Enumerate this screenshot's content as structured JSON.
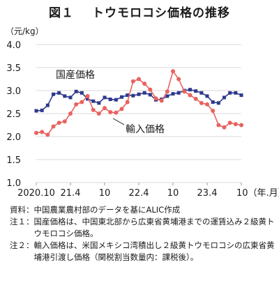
{
  "figure": {
    "number": "図１",
    "title": "トウモロコシ価格の推移",
    "unit": "（元/kg）"
  },
  "chart_data": {
    "type": "line",
    "x": [
      "2020.10",
      "2020.11",
      "2020.12",
      "2021.1",
      "2021.2",
      "2021.3",
      "2021.4",
      "2021.5",
      "2021.6",
      "2021.7",
      "2021.8",
      "2021.9",
      "2021.10",
      "2021.11",
      "2021.12",
      "2022.1",
      "2022.2",
      "2022.3",
      "2022.4",
      "2022.5",
      "2022.6",
      "2022.7",
      "2022.8",
      "2022.9",
      "2022.10",
      "2022.11",
      "2022.12",
      "2023.1",
      "2023.2",
      "2023.3",
      "2023.4",
      "2023.5",
      "2023.6",
      "2023.7",
      "2023.8",
      "2023.9",
      "2023.10"
    ],
    "x_tick_labels": [
      "2020.10",
      "21.4",
      "10",
      "22.4",
      "10",
      "23.4",
      "10（年.月）"
    ],
    "x_tick_index": [
      0,
      6,
      12,
      18,
      24,
      30,
      36
    ],
    "series": [
      {
        "name": "国産価格",
        "color": "#2e3a8c",
        "marker": "square",
        "values": [
          2.56,
          2.57,
          2.68,
          2.92,
          2.95,
          2.88,
          2.85,
          2.98,
          2.95,
          2.82,
          2.77,
          2.73,
          2.85,
          2.81,
          2.8,
          2.86,
          2.9,
          2.89,
          2.92,
          2.95,
          2.91,
          2.8,
          2.81,
          2.88,
          2.93,
          2.95,
          3.0,
          3.02,
          2.99,
          2.95,
          2.88,
          2.75,
          2.73,
          2.85,
          2.95,
          2.95,
          2.9
        ]
      },
      {
        "name": "輸入価格",
        "color": "#e9625f",
        "marker": "circle",
        "values": [
          2.08,
          2.1,
          2.04,
          2.22,
          2.3,
          2.33,
          2.5,
          2.7,
          2.75,
          2.88,
          2.58,
          2.5,
          2.62,
          2.53,
          2.52,
          2.6,
          2.75,
          3.2,
          3.25,
          3.15,
          3.02,
          2.83,
          2.78,
          2.98,
          3.42,
          3.25,
          2.98,
          2.9,
          2.82,
          2.73,
          2.7,
          2.56,
          2.25,
          2.2,
          2.3,
          2.27,
          2.25
        ]
      }
    ],
    "ylim": [
      1.0,
      4.0
    ],
    "y_ticks": [
      "1.0",
      "1.5",
      "2.0",
      "2.5",
      "3.0",
      "3.5",
      "4.0"
    ],
    "grid": true
  },
  "notes": [
    {
      "key": "資料：",
      "text": "中国農業農村部のデータを基にALIC作成"
    },
    {
      "key": "注１：",
      "text": "国産価格は、中国東北部から広東省黄埔港までの運賃込み２級黄トウモロコシ価格。"
    },
    {
      "key": "注２：",
      "text": "輸入価格は、米国メキシコ湾積出し２級黄トウモロコシの広東省黄埔港引渡し価格（関税割当数量内：課税後）。"
    }
  ]
}
